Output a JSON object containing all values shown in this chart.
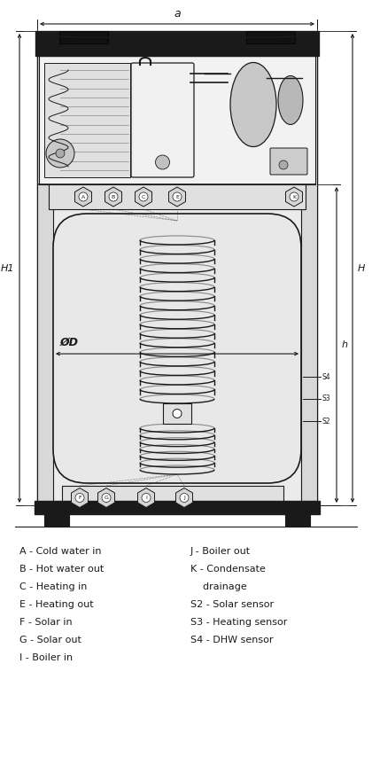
{
  "bg_color": "#ffffff",
  "line_color": "#1a1a1a",
  "dark_cap": "#1a1a1a",
  "light_gray": "#d8d8d8",
  "mid_gray": "#b8b8b8",
  "very_light_gray": "#ebebeb",
  "inner_gray": "#e0e0e0",
  "legend_left": [
    "A - Cold water in",
    "B - Hot water out",
    "C - Heating in",
    "E - Heating out",
    "F - Solar in",
    "G - Solar out",
    "I - Boiler in"
  ],
  "legend_right": [
    "J - Boiler out",
    "K - Condensate",
    "    drainage",
    "S2 - Solar sensor",
    "S3 - Heating sensor",
    "S4 - DHW sensor"
  ],
  "port_labels_top": [
    "A",
    "B",
    "C",
    "E",
    "K"
  ],
  "port_labels_bot": [
    "F",
    "G",
    "I",
    "J"
  ],
  "sensor_labels": [
    "S4",
    "S3",
    "S2"
  ]
}
